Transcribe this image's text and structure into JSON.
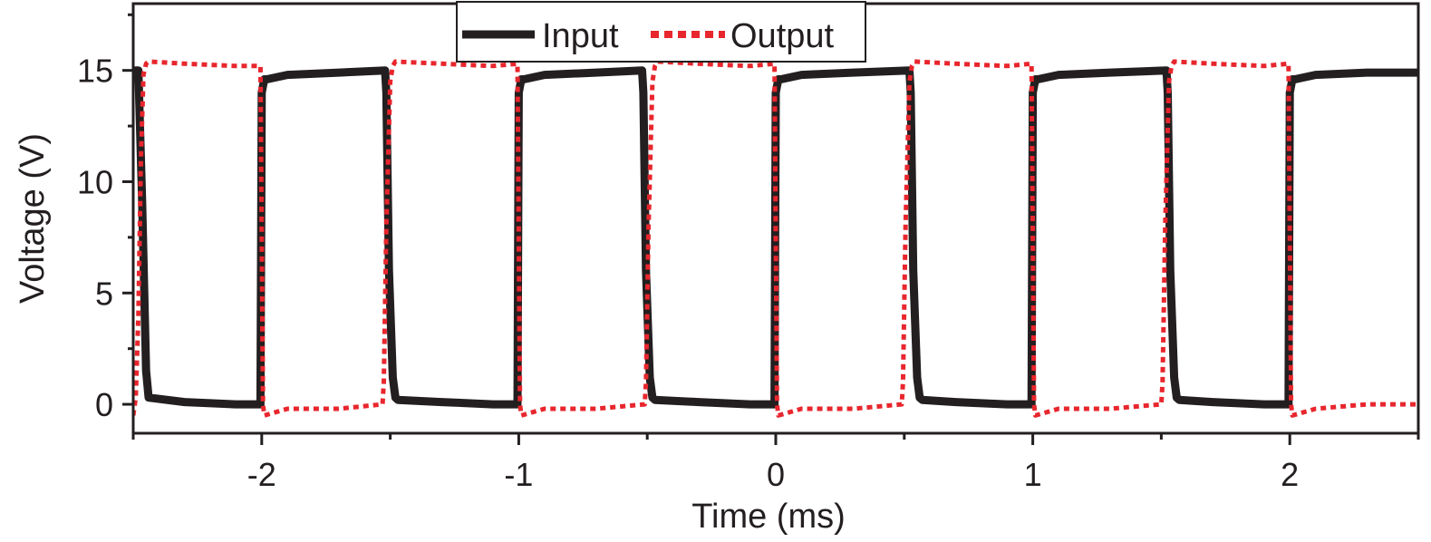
{
  "chart_data": {
    "type": "line",
    "title": "",
    "xlabel": "Time (ms)",
    "ylabel": "Voltage (V)",
    "xlim": [
      -2.5,
      2.5
    ],
    "ylim": [
      -1.3,
      18.0
    ],
    "xticks": [
      -2,
      -1,
      0,
      1,
      2
    ],
    "xtick_labels": [
      "-2",
      "-1",
      "0",
      "1",
      "2"
    ],
    "yticks": [
      0,
      5,
      10,
      15
    ],
    "ytick_labels": [
      "0",
      "5",
      "10",
      "15"
    ],
    "minor_xticks": [
      -2.5,
      -1.5,
      -0.5,
      0.5,
      1.5,
      2.5
    ],
    "grid": false,
    "legend_position": "top-center",
    "series": [
      {
        "name": "Input",
        "color": "#231f20",
        "style": "solid",
        "x": [
          -2.5,
          -2.49,
          -2.48,
          -2.465,
          -2.45,
          -2.44,
          -2.3,
          -2.1,
          -2.005,
          -2.0,
          -1.99,
          -1.98,
          -1.9,
          -1.7,
          -1.52,
          -1.515,
          -1.505,
          -1.49,
          -1.48,
          -1.47,
          -1.3,
          -1.1,
          -1.005,
          -1.0,
          -0.99,
          -0.98,
          -0.9,
          -0.7,
          -0.52,
          -0.515,
          -0.505,
          -0.49,
          -0.48,
          -0.47,
          -0.3,
          -0.1,
          -0.005,
          0.0,
          0.01,
          0.02,
          0.1,
          0.3,
          0.52,
          0.525,
          0.535,
          0.55,
          0.56,
          0.57,
          0.7,
          0.9,
          0.995,
          1.0,
          1.01,
          1.02,
          1.1,
          1.3,
          1.52,
          1.525,
          1.535,
          1.55,
          1.56,
          1.57,
          1.7,
          1.9,
          1.995,
          2.0,
          2.01,
          2.02,
          2.1,
          2.3,
          2.5
        ],
        "y": [
          14.6,
          15.0,
          15.0,
          9.0,
          1.5,
          0.3,
          0.1,
          0.0,
          0.0,
          14.0,
          14.6,
          14.6,
          14.8,
          14.9,
          15.0,
          14.0,
          6.0,
          1.2,
          0.3,
          0.2,
          0.1,
          0.0,
          0.0,
          14.0,
          14.6,
          14.6,
          14.8,
          14.9,
          15.0,
          14.0,
          6.0,
          1.2,
          0.3,
          0.2,
          0.1,
          0.0,
          0.0,
          14.0,
          14.6,
          14.6,
          14.8,
          14.9,
          15.0,
          14.0,
          6.0,
          1.2,
          0.3,
          0.2,
          0.1,
          0.0,
          0.0,
          14.0,
          14.6,
          14.6,
          14.8,
          14.9,
          15.0,
          14.0,
          6.0,
          1.2,
          0.3,
          0.2,
          0.1,
          0.0,
          0.0,
          14.0,
          14.6,
          14.6,
          14.8,
          14.9,
          14.9
        ]
      },
      {
        "name": "Output",
        "color": "#e8262d",
        "style": "dotted",
        "x": [
          -2.5,
          -2.49,
          -2.48,
          -2.47,
          -2.46,
          -2.45,
          -2.44,
          -2.3,
          -2.1,
          -2.005,
          -2.0,
          -1.995,
          -1.99,
          -1.9,
          -1.7,
          -1.53,
          -1.525,
          -1.515,
          -1.5,
          -1.49,
          -1.48,
          -1.3,
          -1.1,
          -1.005,
          -1.0,
          -0.995,
          -0.99,
          -0.9,
          -0.7,
          -0.51,
          -0.505,
          -0.495,
          -0.48,
          -0.47,
          -0.46,
          -0.3,
          -0.1,
          -0.005,
          0.0,
          0.005,
          0.01,
          0.1,
          0.3,
          0.49,
          0.495,
          0.505,
          0.52,
          0.53,
          0.54,
          0.7,
          0.9,
          0.995,
          1.0,
          1.005,
          1.01,
          1.1,
          1.3,
          1.5,
          1.505,
          1.515,
          1.53,
          1.54,
          1.55,
          1.7,
          1.9,
          1.995,
          2.0,
          2.005,
          2.01,
          2.1,
          2.3,
          2.5
        ],
        "y": [
          -0.5,
          0.3,
          4.0,
          11.0,
          14.8,
          15.3,
          15.4,
          15.3,
          15.2,
          15.2,
          7.5,
          0.0,
          -0.5,
          -0.2,
          -0.2,
          0.0,
          1.0,
          8.0,
          14.5,
          15.2,
          15.4,
          15.3,
          15.2,
          15.3,
          7.5,
          0.0,
          -0.5,
          -0.2,
          -0.2,
          0.0,
          1.0,
          8.0,
          14.5,
          15.2,
          15.4,
          15.3,
          15.2,
          15.3,
          7.5,
          0.0,
          -0.5,
          -0.2,
          -0.2,
          0.0,
          1.0,
          8.0,
          14.5,
          15.2,
          15.4,
          15.3,
          15.2,
          15.3,
          7.5,
          0.0,
          -0.5,
          -0.2,
          -0.2,
          0.0,
          1.0,
          8.0,
          14.5,
          15.2,
          15.4,
          15.3,
          15.2,
          15.3,
          7.5,
          0.0,
          -0.5,
          -0.2,
          0.0,
          0.0
        ]
      }
    ]
  }
}
